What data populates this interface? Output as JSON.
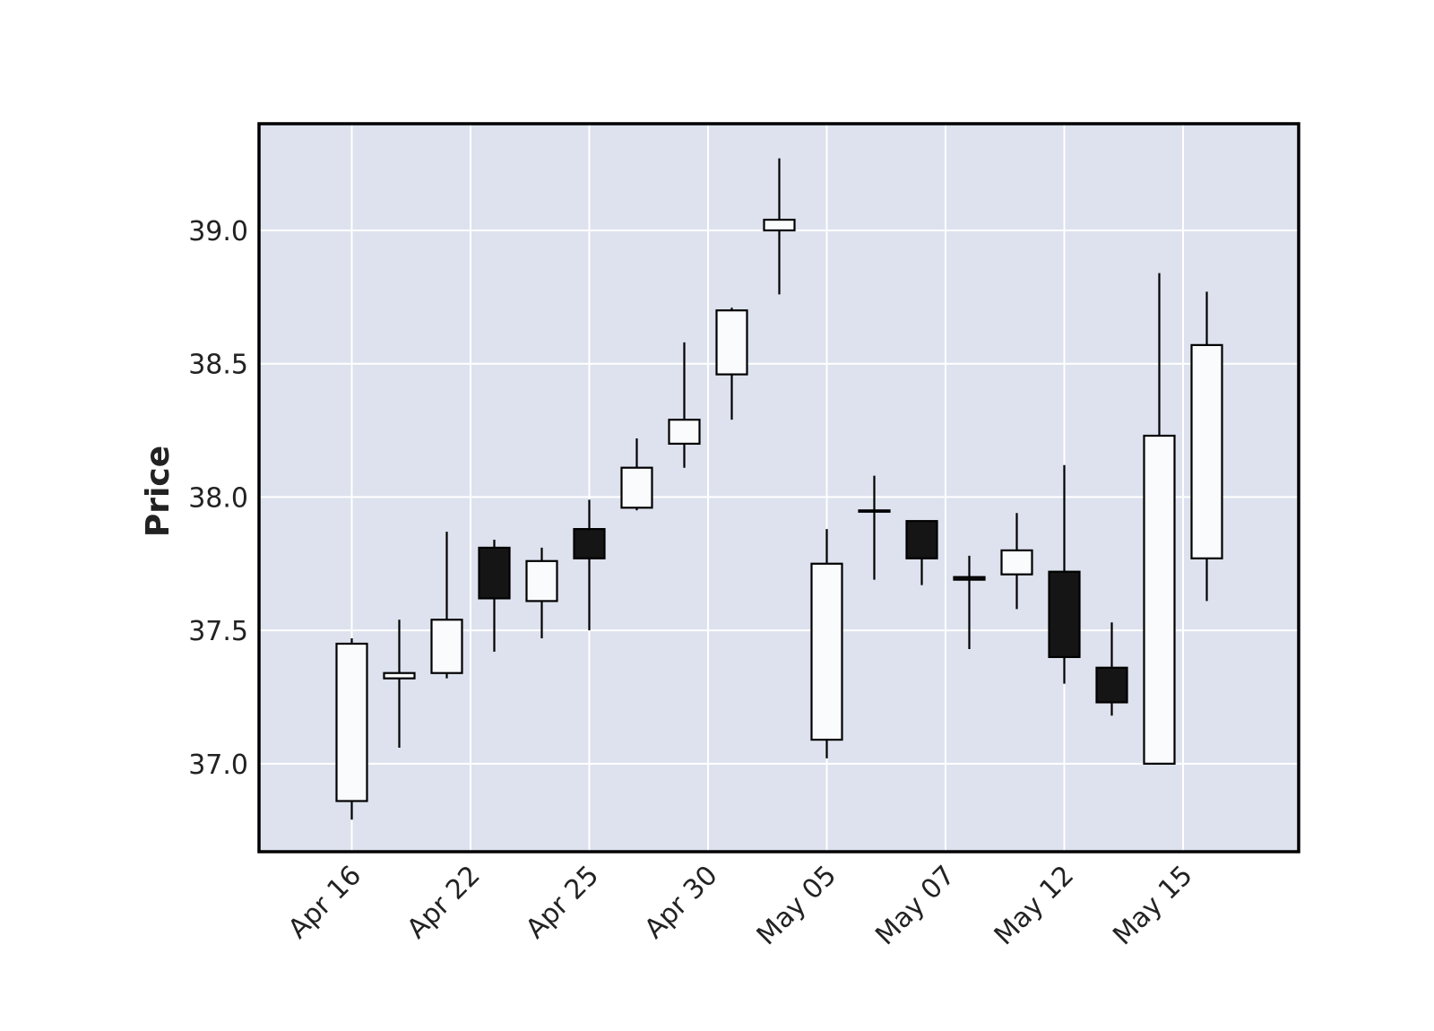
{
  "chart_data": {
    "type": "candlestick",
    "ylabel": "Price",
    "xlabel": "",
    "ylim": [
      36.67,
      39.4
    ],
    "yticks": [
      37.0,
      37.5,
      38.0,
      38.5,
      39.0
    ],
    "ytick_labels": [
      "37.0",
      "37.5",
      "38.0",
      "38.5",
      "39.0"
    ],
    "xtick_labels": [
      {
        "index": 0,
        "label": "Apr 16"
      },
      {
        "index": 2.5,
        "label": "Apr 22"
      },
      {
        "index": 5,
        "label": "Apr 25"
      },
      {
        "index": 7.5,
        "label": "Apr 30"
      },
      {
        "index": 10,
        "label": "May 05"
      },
      {
        "index": 12.5,
        "label": "May 07"
      },
      {
        "index": 15,
        "label": "May 12"
      },
      {
        "index": 17.5,
        "label": "May 15"
      }
    ],
    "grid": true,
    "colors": {
      "plot_background": "#dde2ee",
      "grid": "#ffffff",
      "up_candle": "#fafbfd",
      "down_candle": "#151515",
      "edge": "#000000"
    },
    "candles": [
      {
        "open": 36.86,
        "high": 37.47,
        "low": 36.79,
        "close": 37.45
      },
      {
        "open": 37.32,
        "high": 37.54,
        "low": 37.06,
        "close": 37.34
      },
      {
        "open": 37.34,
        "high": 37.87,
        "low": 37.32,
        "close": 37.54
      },
      {
        "open": 37.81,
        "high": 37.84,
        "low": 37.42,
        "close": 37.62
      },
      {
        "open": 37.61,
        "high": 37.81,
        "low": 37.47,
        "close": 37.76
      },
      {
        "open": 37.88,
        "high": 37.99,
        "low": 37.5,
        "close": 37.77
      },
      {
        "open": 37.96,
        "high": 38.22,
        "low": 37.95,
        "close": 38.11
      },
      {
        "open": 38.2,
        "high": 38.58,
        "low": 38.11,
        "close": 38.29
      },
      {
        "open": 38.46,
        "high": 38.71,
        "low": 38.29,
        "close": 38.7
      },
      {
        "open": 39.0,
        "high": 39.27,
        "low": 38.76,
        "close": 39.04
      },
      {
        "open": 37.09,
        "high": 37.88,
        "low": 37.02,
        "close": 37.75
      },
      {
        "open": 37.95,
        "high": 38.08,
        "low": 37.69,
        "close": 37.95
      },
      {
        "open": 37.91,
        "high": 37.91,
        "low": 37.67,
        "close": 37.77
      },
      {
        "open": 37.7,
        "high": 37.78,
        "low": 37.43,
        "close": 37.69
      },
      {
        "open": 37.71,
        "high": 37.94,
        "low": 37.58,
        "close": 37.8
      },
      {
        "open": 37.72,
        "high": 38.12,
        "low": 37.3,
        "close": 37.4
      },
      {
        "open": 37.36,
        "high": 37.53,
        "low": 37.18,
        "close": 37.23
      },
      {
        "open": 37.0,
        "high": 38.84,
        "low": 37.0,
        "close": 38.23
      },
      {
        "open": 37.77,
        "high": 38.77,
        "low": 37.61,
        "close": 38.57
      }
    ]
  }
}
